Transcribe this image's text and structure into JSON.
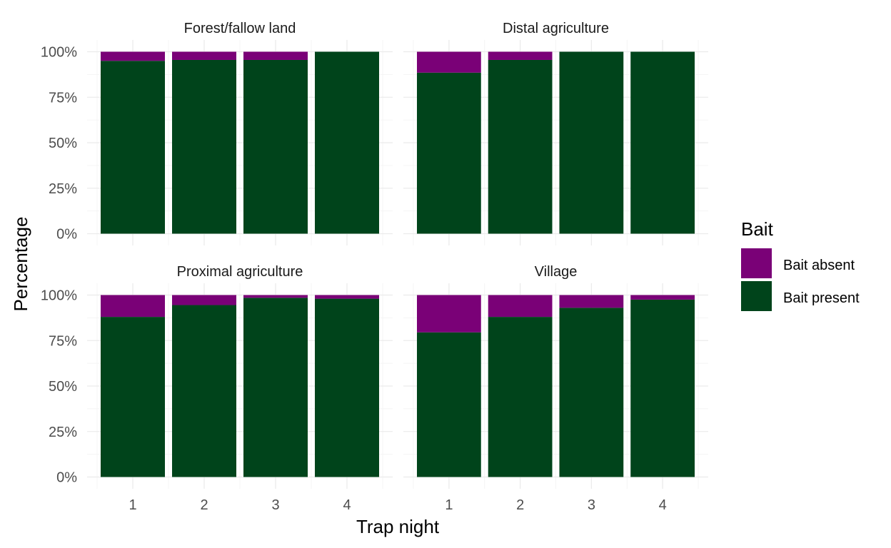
{
  "chart_data": {
    "type": "bar",
    "stacked": true,
    "xlabel": "Trap night",
    "ylabel": "Percentage",
    "categories": [
      "1",
      "2",
      "3",
      "4"
    ],
    "ylim": [
      0,
      1
    ],
    "y_ticks": [
      "0%",
      "25%",
      "50%",
      "75%",
      "100%"
    ],
    "grid": true,
    "legend": {
      "title": "Bait",
      "position": "right",
      "entries": [
        {
          "label": "Bait absent",
          "color": "#7a0177"
        },
        {
          "label": "Bait present",
          "color": "#00441b"
        }
      ]
    },
    "panels": [
      {
        "title": "Forest/fallow land",
        "series": [
          {
            "name": "Bait present",
            "values": [
              0.95,
              0.955,
              0.955,
              1.0
            ]
          },
          {
            "name": "Bait absent",
            "values": [
              0.05,
              0.045,
              0.045,
              0.0
            ]
          }
        ]
      },
      {
        "title": "Distal agriculture",
        "series": [
          {
            "name": "Bait present",
            "values": [
              0.885,
              0.955,
              1.0,
              1.0
            ]
          },
          {
            "name": "Bait absent",
            "values": [
              0.115,
              0.045,
              0.0,
              0.0
            ]
          }
        ]
      },
      {
        "title": "Proximal agriculture",
        "series": [
          {
            "name": "Bait present",
            "values": [
              0.88,
              0.945,
              0.985,
              0.98
            ]
          },
          {
            "name": "Bait absent",
            "values": [
              0.12,
              0.055,
              0.015,
              0.02
            ]
          }
        ]
      },
      {
        "title": "Village",
        "series": [
          {
            "name": "Bait present",
            "values": [
              0.795,
              0.88,
              0.93,
              0.975
            ]
          },
          {
            "name": "Bait absent",
            "values": [
              0.205,
              0.12,
              0.07,
              0.025
            ]
          }
        ]
      }
    ]
  }
}
